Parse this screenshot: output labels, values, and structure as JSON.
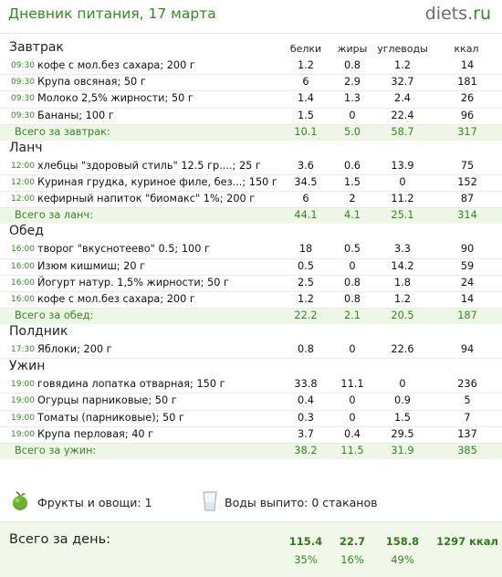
{
  "header": {
    "title": "Дневник питания, 17 марта",
    "logo_brand": "diets",
    "logo_tld": ".ru"
  },
  "columns": {
    "protein": "белки",
    "fat": "жиры",
    "carbs": "углеводы",
    "kcal": "ккал"
  },
  "meals": [
    {
      "title": "Завтрак",
      "rows": [
        {
          "time": "09:30",
          "food": "кофе с мол.без сахара; 200 г",
          "p": "1.2",
          "f": "0.8",
          "c": "1.2",
          "k": "14"
        },
        {
          "time": "09:30",
          "food": "Крупа овсяная; 50 г",
          "p": "6",
          "f": "2.9",
          "c": "32.7",
          "k": "181"
        },
        {
          "time": "09:30",
          "food": "Молоко 2,5% жирности; 50 г",
          "p": "1.4",
          "f": "1.3",
          "c": "2.4",
          "k": "26"
        },
        {
          "time": "09:30",
          "food": "Бананы; 100 г",
          "p": "1.5",
          "f": "0",
          "c": "22.4",
          "k": "96"
        }
      ],
      "total": {
        "label": "Всего за завтрак:",
        "p": "10.1",
        "f": "5.0",
        "c": "58.7",
        "k": "317"
      }
    },
    {
      "title": "Ланч",
      "rows": [
        {
          "time": "12:00",
          "food": "хлебцы \"здоровый стиль\" 12.5 гр....; 25 г",
          "p": "3.6",
          "f": "0.6",
          "c": "13.9",
          "k": "75"
        },
        {
          "time": "12:00",
          "food": "Куриная грудка, куриное филе, без...; 150 г",
          "p": "34.5",
          "f": "1.5",
          "c": "0",
          "k": "152"
        },
        {
          "time": "12:00",
          "food": "кефирный напиток \"биомакс\" 1%; 200 г",
          "p": "6",
          "f": "2",
          "c": "11.2",
          "k": "87"
        }
      ],
      "total": {
        "label": "Всего за ланч:",
        "p": "44.1",
        "f": "4.1",
        "c": "25.1",
        "k": "314"
      }
    },
    {
      "title": "Обед",
      "rows": [
        {
          "time": "16:00",
          "food": "творог \"вкуснотеево\" 0.5; 100 г",
          "p": "18",
          "f": "0.5",
          "c": "3.3",
          "k": "90"
        },
        {
          "time": "16:00",
          "food": "Изюм кишмиш; 20 г",
          "p": "0.5",
          "f": "0",
          "c": "14.2",
          "k": "59"
        },
        {
          "time": "16:00",
          "food": "Йогурт натур. 1,5% жирности; 50 г",
          "p": "2.5",
          "f": "0.8",
          "c": "1.8",
          "k": "24"
        },
        {
          "time": "16:00",
          "food": "кофе с мол.без сахара; 200 г",
          "p": "1.2",
          "f": "0.8",
          "c": "1.2",
          "k": "14"
        }
      ],
      "total": {
        "label": "Всего за обед:",
        "p": "22.2",
        "f": "2.1",
        "c": "20.5",
        "k": "187"
      }
    },
    {
      "title": "Полдник",
      "rows": [
        {
          "time": "17:30",
          "food": "Яблоки; 200 г",
          "p": "0.8",
          "f": "0",
          "c": "22.6",
          "k": "94"
        }
      ],
      "total": null
    },
    {
      "title": "Ужин",
      "rows": [
        {
          "time": "19:00",
          "food": "говядина лопатка отварная; 150 г",
          "p": "33.8",
          "f": "11.1",
          "c": "0",
          "k": "236"
        },
        {
          "time": "19:00",
          "food": "Огурцы парниковые; 50 г",
          "p": "0.4",
          "f": "0",
          "c": "0.9",
          "k": "5"
        },
        {
          "time": "19:00",
          "food": "Томаты (парниковые); 50 г",
          "p": "0.3",
          "f": "0",
          "c": "1.5",
          "k": "7"
        },
        {
          "time": "19:00",
          "food": "Крупа перловая; 40 г",
          "p": "3.7",
          "f": "0.4",
          "c": "29.5",
          "k": "137"
        }
      ],
      "total": {
        "label": "Всего за ужин:",
        "p": "38.2",
        "f": "11.5",
        "c": "31.9",
        "k": "385"
      }
    }
  ],
  "extras": {
    "fruit_icon": "green-apple-icon",
    "fruit_label": "Фрукты и овощи: 1",
    "water_icon": "water-glass-icon",
    "water_label": "Воды выпито: 0 стаканов"
  },
  "day_total": {
    "label": "Всего за день:",
    "p": "115.4",
    "f": "22.7",
    "c": "158.8",
    "k": "1297 ккал",
    "p_pct": "35%",
    "f_pct": "16%",
    "c_pct": "49%"
  },
  "colors": {
    "accent_green": "#2e8b1e",
    "total_row_bg": "#eef6e6",
    "day_bg": "#f1f8ea"
  }
}
